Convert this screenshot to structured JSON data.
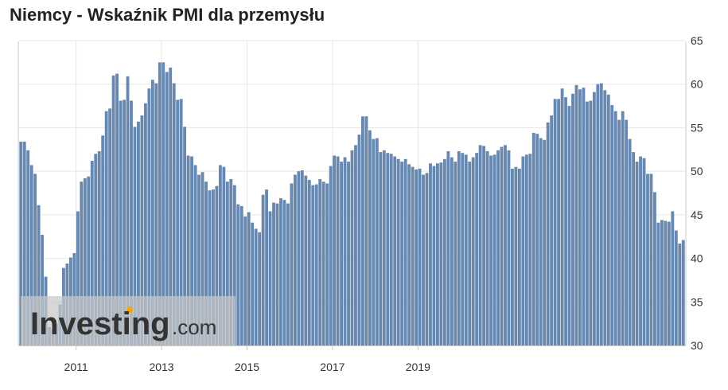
{
  "title": "Niemcy - Wskaźnik PMI dla przemysłu",
  "watermark": {
    "brand": "Investing",
    "suffix": ".com"
  },
  "colors": {
    "bar": "#6688b1",
    "bar_edge": "#4f6f99",
    "grid": "#e6e6e6",
    "axis": "#c9c9c9",
    "watermark_box": "#c8c8c8",
    "watermark_text": "#333333",
    "watermark_dot": "#f2a900"
  },
  "chart_data": {
    "type": "bar",
    "title": "Niemcy - Wskaźnik PMI dla przemysłu",
    "xlabel": "",
    "ylabel": "",
    "ylim": [
      30,
      65
    ],
    "y_ticks": [
      "30",
      "35",
      "40",
      "45",
      "50",
      "55",
      "60",
      "65"
    ],
    "x_ticks": [
      "2011",
      "2013",
      "2015",
      "2017",
      "2019"
    ],
    "x_tick_months": [
      16,
      40,
      64,
      88,
      112
    ],
    "grid": true,
    "y_axis_side": "right",
    "start": "2009-08",
    "values": [
      53.4,
      53.4,
      52.4,
      50.7,
      49.7,
      46.1,
      42.7,
      37.9,
      32.1,
      31.8,
      32.5,
      34.7,
      38.9,
      39.4,
      40.1,
      40.6,
      45.4,
      48.8,
      49.2,
      49.4,
      51.2,
      52.0,
      52.3,
      54.1,
      56.9,
      57.2,
      61.0,
      61.2,
      58.1,
      58.2,
      60.9,
      58.1,
      55.1,
      55.7,
      56.4,
      57.8,
      59.5,
      60.5,
      60.1,
      62.5,
      62.5,
      61.4,
      61.9,
      60.1,
      58.2,
      58.3,
      55.1,
      51.8,
      51.7,
      50.7,
      49.6,
      49.9,
      48.8,
      47.8,
      47.9,
      48.3,
      50.7,
      50.5,
      48.8,
      49.1,
      48.4,
      46.2,
      46.0,
      44.8,
      45.3,
      44.1,
      43.4,
      43.0,
      47.3,
      47.9,
      45.4,
      46.4,
      46.3,
      46.9,
      46.7,
      46.3,
      48.6,
      49.6,
      50.0,
      50.1,
      49.5,
      49.0,
      48.4,
      48.5,
      49.1,
      48.8,
      48.6,
      50.6,
      51.8,
      51.7,
      51.1,
      51.6,
      51.1,
      52.4,
      53.0,
      54.2,
      56.3,
      56.3,
      54.7,
      53.7,
      53.8,
      52.2,
      52.4,
      52.1,
      52.0,
      51.7,
      51.4,
      51.1,
      51.4,
      50.8,
      50.5,
      50.2,
      50.3,
      49.6,
      49.8,
      50.9,
      50.6,
      50.9,
      51.0,
      51.4,
      52.3,
      51.6,
      51.1,
      52.3,
      52.1,
      51.9,
      51.1,
      51.6,
      52.1,
      53.0,
      52.9,
      52.3,
      51.8,
      51.9,
      52.4,
      52.8,
      53.0,
      52.4,
      50.3,
      50.5,
      50.3,
      51.7,
      51.9,
      52.0,
      54.4,
      54.3,
      53.8,
      53.6,
      55.6,
      56.4,
      58.3,
      58.3,
      59.5,
      58.5,
      57.5,
      58.9,
      59.9,
      59.4,
      59.6,
      58.0,
      58.1,
      59.1,
      60.0,
      60.1,
      59.3,
      58.8,
      57.6,
      56.9,
      55.9,
      56.9,
      55.9,
      53.7,
      52.2,
      51.1,
      51.7,
      51.5,
      49.7,
      49.7,
      47.6,
      44.1,
      44.4,
      44.3,
      44.2,
      45.4,
      43.2,
      41.7,
      42.1
    ]
  }
}
